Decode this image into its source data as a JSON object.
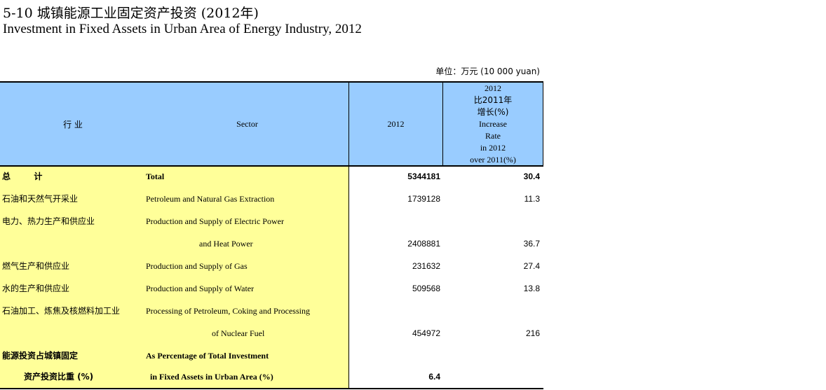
{
  "title_cn": "5-10 城镇能源工业固定资产投资 (2012年)",
  "title_en": "Investment in Fixed Assets in Urban Area of Energy Industry, 2012",
  "unit": "单位：万元 (10 000 yuan)",
  "header": {
    "industry_cn": "行    业",
    "sector_en": "Sector",
    "col_2012": "2012",
    "rate_lines": [
      "2012",
      "比2011年",
      "增长(%)",
      "Increase",
      "Rate",
      "in 2012",
      "over 2011(%)"
    ]
  },
  "rows": [
    {
      "cn": "总        计",
      "en": "Total",
      "v2012": "5344181",
      "rate": "30.4"
    },
    {
      "cn": "石油和天然气开采业",
      "en": "Petroleum and Natural Gas Extraction",
      "v2012": "1739128",
      "rate": "11.3"
    },
    {
      "cn": "电力、热力生产和供应业",
      "en": "Production and Supply of Electric Power",
      "v2012": "",
      "rate": ""
    },
    {
      "cn": "",
      "en": "and Heat Power",
      "v2012": "2408881",
      "rate": "36.7"
    },
    {
      "cn": "燃气生产和供应业",
      "en": "Production and Supply of Gas",
      "v2012": "231632",
      "rate": "27.4"
    },
    {
      "cn": "水的生产和供应业",
      "en": "Production and Supply of Water",
      "v2012": "509568",
      "rate": "13.8"
    },
    {
      "cn": "石油加工、炼焦及核燃料加工业",
      "en": "Processing of Petroleum, Coking and Processing",
      "v2012": "",
      "rate": ""
    },
    {
      "cn": "",
      "en": "of Nuclear Fuel",
      "v2012": "454972",
      "rate": "216"
    },
    {
      "cn": "能源投资占城镇固定",
      "en": "As Percentage of Total Investment",
      "v2012": "",
      "rate": ""
    },
    {
      "cn": "资产投资比重 (%)",
      "en": "in Fixed Assets in Urban Area (%)",
      "v2012": "6.4",
      "rate": ""
    }
  ]
}
